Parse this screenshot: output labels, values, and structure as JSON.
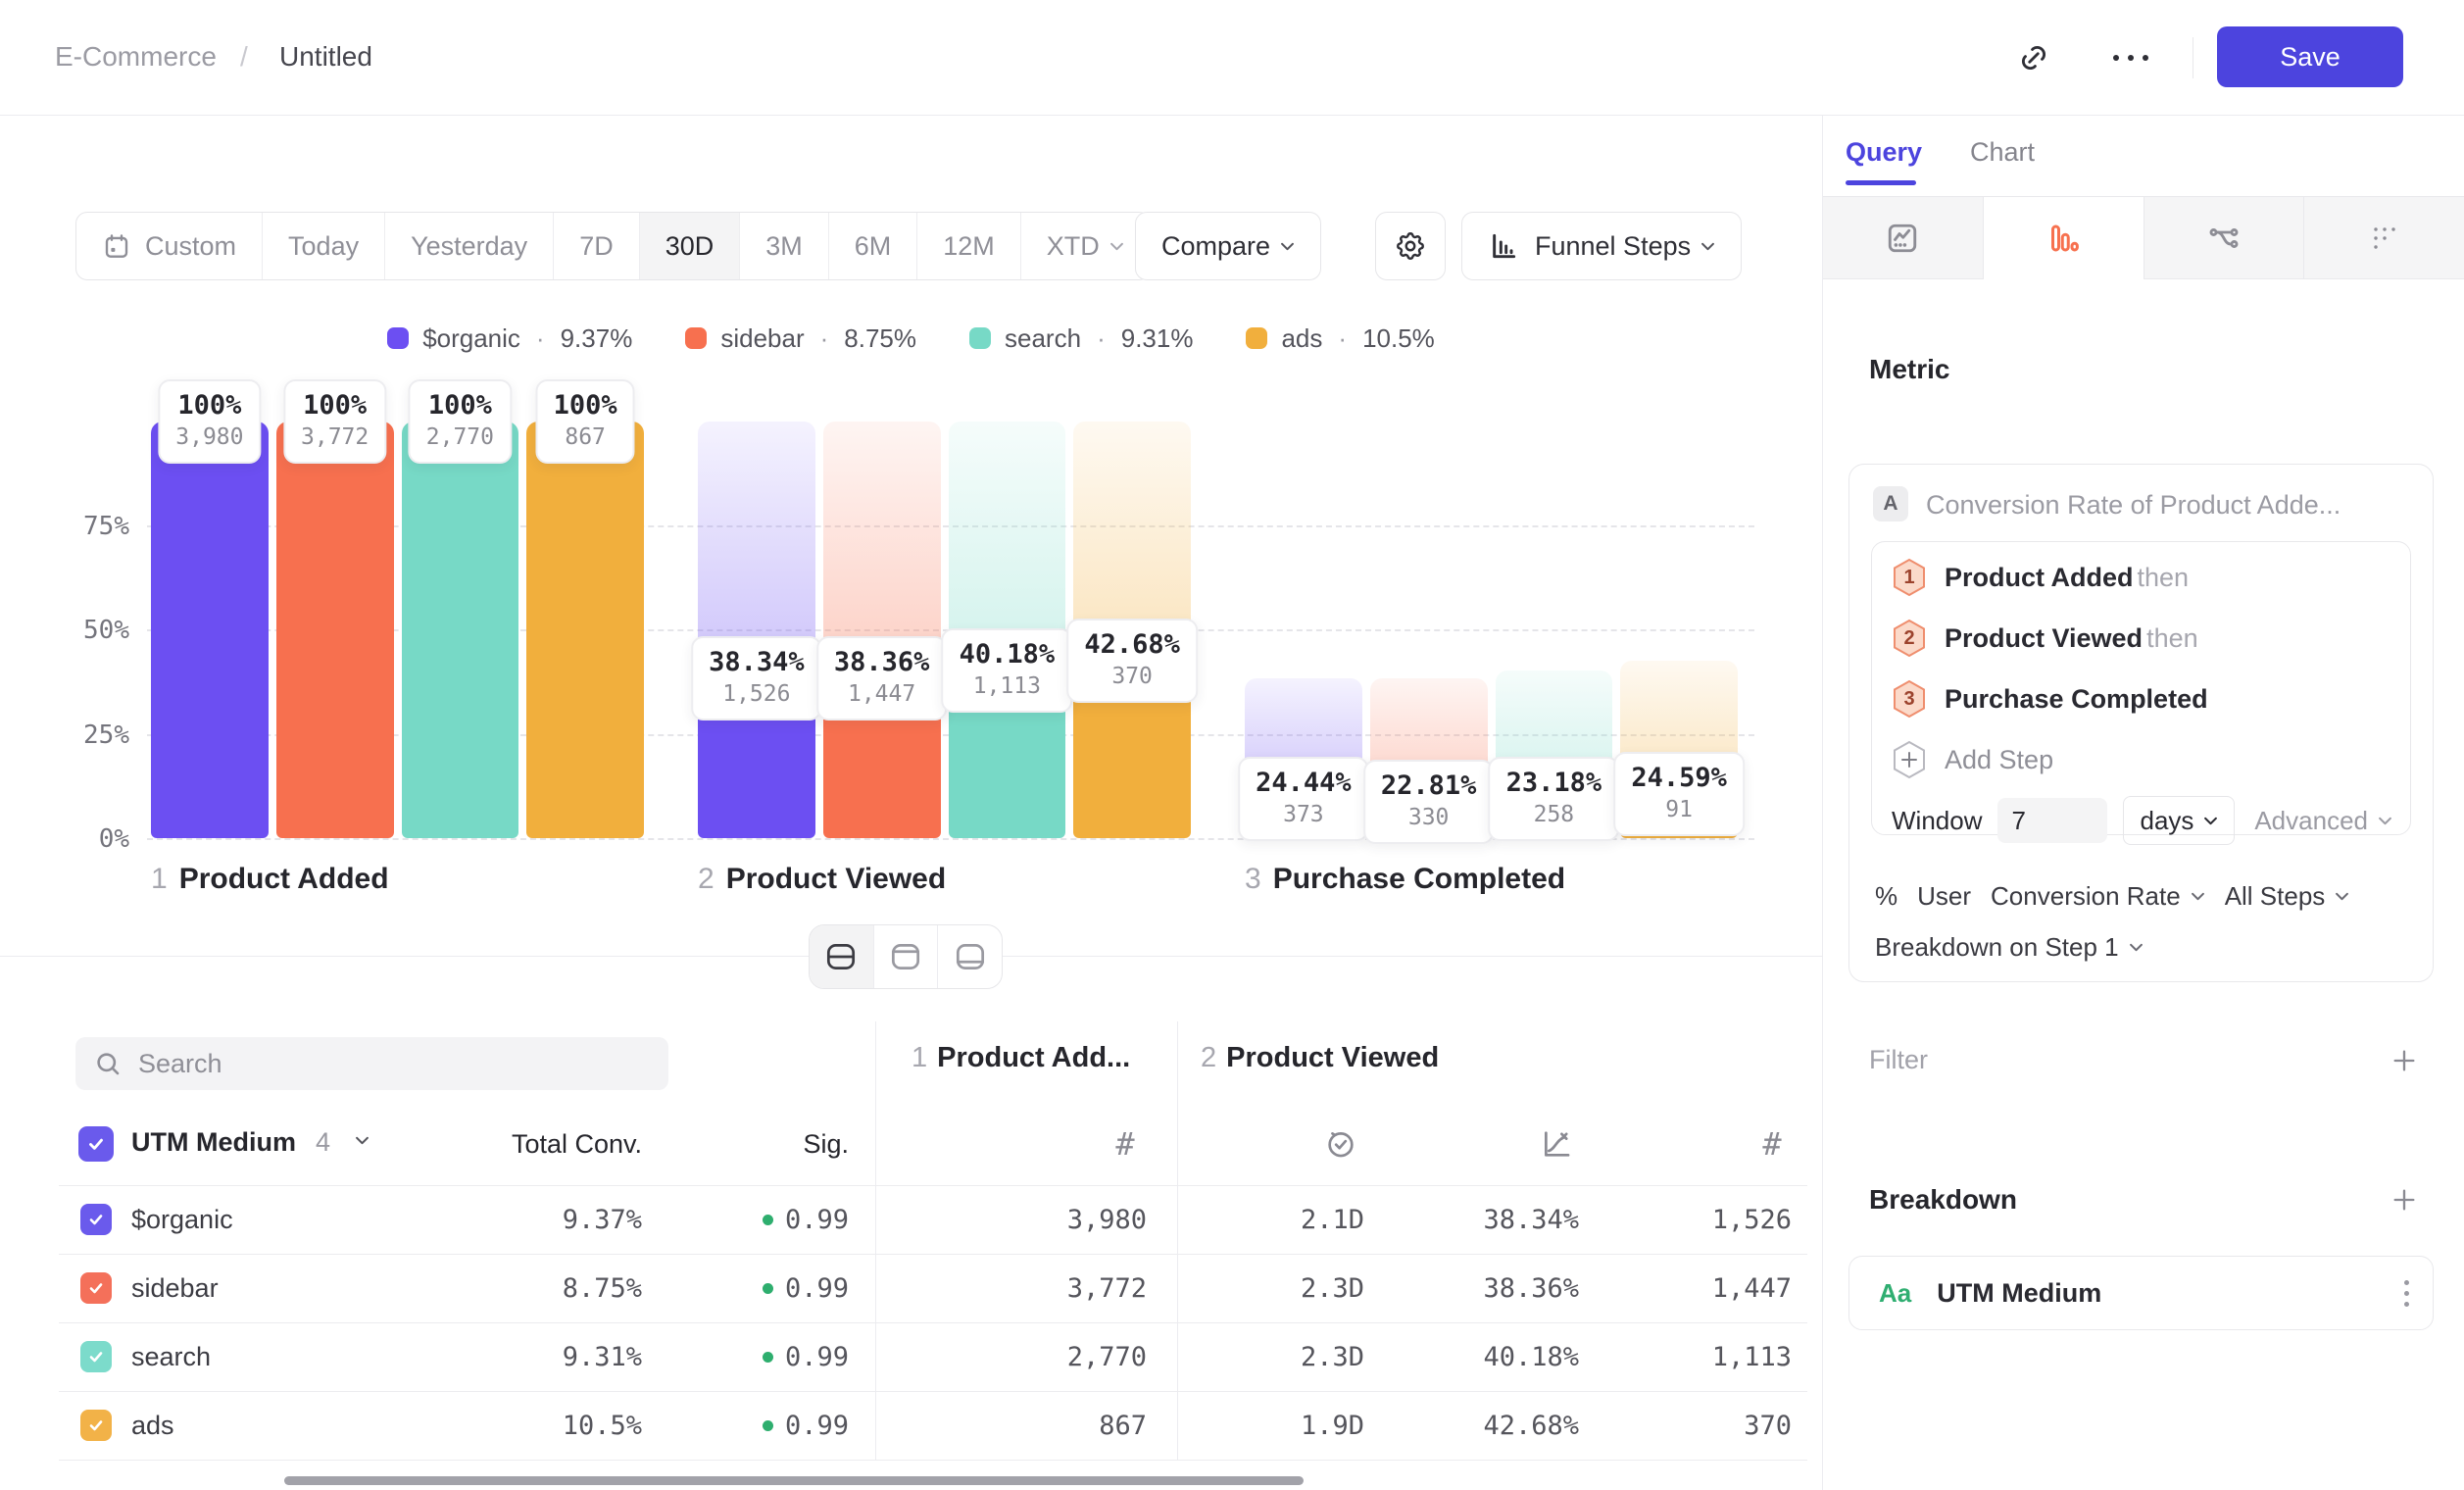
{
  "header": {
    "breadcrumb_project": "E-Commerce",
    "breadcrumb_sep": "/",
    "breadcrumb_page": "Untitled",
    "save_label": "Save",
    "accent_color": "#4c44de"
  },
  "toolbar": {
    "ranges": [
      "Custom",
      "Today",
      "Yesterday",
      "7D",
      "30D",
      "3M",
      "6M",
      "12M",
      "XTD"
    ],
    "selected_range": "30D",
    "compare_label": "Compare",
    "view_label": "Funnel Steps"
  },
  "legend": {
    "separator": "·",
    "items": [
      {
        "label": "$organic",
        "pct": "9.37%",
        "color": "#6c4ff2"
      },
      {
        "label": "sidebar",
        "pct": "8.75%",
        "color": "#f7704f"
      },
      {
        "label": "search",
        "pct": "9.31%",
        "color": "#77d9c6"
      },
      {
        "label": "ads",
        "pct": "10.5%",
        "color": "#f1af3d"
      }
    ]
  },
  "chart_data": {
    "type": "bar",
    "subtype": "funnel-steps",
    "title": "",
    "ylim": [
      0,
      100
    ],
    "y_ticks": [
      "75%",
      "50%",
      "25%",
      "0%"
    ],
    "grid": "dashed-horizontal",
    "legend_position": "top-center",
    "steps": [
      {
        "index": "1",
        "name": "Product Added"
      },
      {
        "index": "2",
        "name": "Product Viewed"
      },
      {
        "index": "3",
        "name": "Purchase Completed"
      }
    ],
    "series": [
      {
        "name": "$organic",
        "color": "#6c4ff2",
        "overall_pct": [
          100,
          38.34,
          9.37
        ],
        "step_conv_labels": [
          "100%",
          "38.34%",
          "24.44%"
        ],
        "counts": [
          "3,980",
          "1,526",
          "373"
        ]
      },
      {
        "name": "sidebar",
        "color": "#f7704f",
        "overall_pct": [
          100,
          38.36,
          8.75
        ],
        "step_conv_labels": [
          "100%",
          "38.36%",
          "22.81%"
        ],
        "counts": [
          "3,772",
          "1,447",
          "330"
        ]
      },
      {
        "name": "search",
        "color": "#77d9c6",
        "overall_pct": [
          100,
          40.18,
          9.31
        ],
        "step_conv_labels": [
          "100%",
          "40.18%",
          "23.18%"
        ],
        "counts": [
          "2,770",
          "1,113",
          "258"
        ]
      },
      {
        "name": "ads",
        "color": "#f1af3d",
        "overall_pct": [
          100,
          42.68,
          10.5
        ],
        "step_conv_labels": [
          "100%",
          "42.68%",
          "24.59%"
        ],
        "counts": [
          "867",
          "370",
          "91"
        ]
      }
    ]
  },
  "table": {
    "search_placeholder": "Search",
    "group": {
      "name": "UTM Medium",
      "count": "4"
    },
    "total_header": "Total Conv.",
    "sig_header": "Sig.",
    "step_headers": [
      {
        "index": "1",
        "name": "Product Add..."
      },
      {
        "index": "2",
        "name": "Product Viewed"
      }
    ],
    "sig_dot_color": "#2eae6e",
    "rows": [
      {
        "name": "$organic",
        "color": "#6a5aec",
        "total": "9.37%",
        "sig": "0.99",
        "entries": "3,980",
        "avg_time": "2.1D",
        "conv": "38.34%",
        "converted": "1,526"
      },
      {
        "name": "sidebar",
        "color": "#f4705a",
        "total": "8.75%",
        "sig": "0.99",
        "entries": "3,772",
        "avg_time": "2.3D",
        "conv": "38.36%",
        "converted": "1,447"
      },
      {
        "name": "search",
        "color": "#7cdbcb",
        "total": "9.31%",
        "sig": "0.99",
        "entries": "2,770",
        "avg_time": "2.3D",
        "conv": "40.18%",
        "converted": "1,113"
      },
      {
        "name": "ads",
        "color": "#f2b248",
        "total": "10.5%",
        "sig": "0.99",
        "entries": "867",
        "avg_time": "1.9D",
        "conv": "42.68%",
        "converted": "370"
      }
    ]
  },
  "sidebar": {
    "tabs": [
      {
        "label": "Query"
      },
      {
        "label": "Chart"
      }
    ],
    "active_tab": "Query",
    "metric": {
      "heading": "Metric",
      "series_badge": "A",
      "summary": "Conversion Rate of Product Adde...",
      "steps": [
        {
          "num": "1",
          "name": "Product Added",
          "suffix": "then"
        },
        {
          "num": "2",
          "name": "Product Viewed",
          "suffix": "then"
        },
        {
          "num": "3",
          "name": "Purchase Completed",
          "suffix": ""
        }
      ],
      "add_step_label": "Add Step",
      "window_label": "Window",
      "window_value": "7",
      "window_unit": "days",
      "advanced_label": "Advanced",
      "measure_symbol": "%",
      "measure_entity": "User",
      "measure_metric": "Conversion Rate",
      "measure_scope": "All Steps",
      "breakdown_on_label": "Breakdown on Step 1"
    },
    "filter_heading": "Filter",
    "breakdown_heading": "Breakdown",
    "breakdown_items": [
      {
        "badge": "Aa",
        "badge_color": "#2fae71",
        "name": "UTM Medium"
      }
    ]
  },
  "icons": {
    "hash": "#"
  }
}
